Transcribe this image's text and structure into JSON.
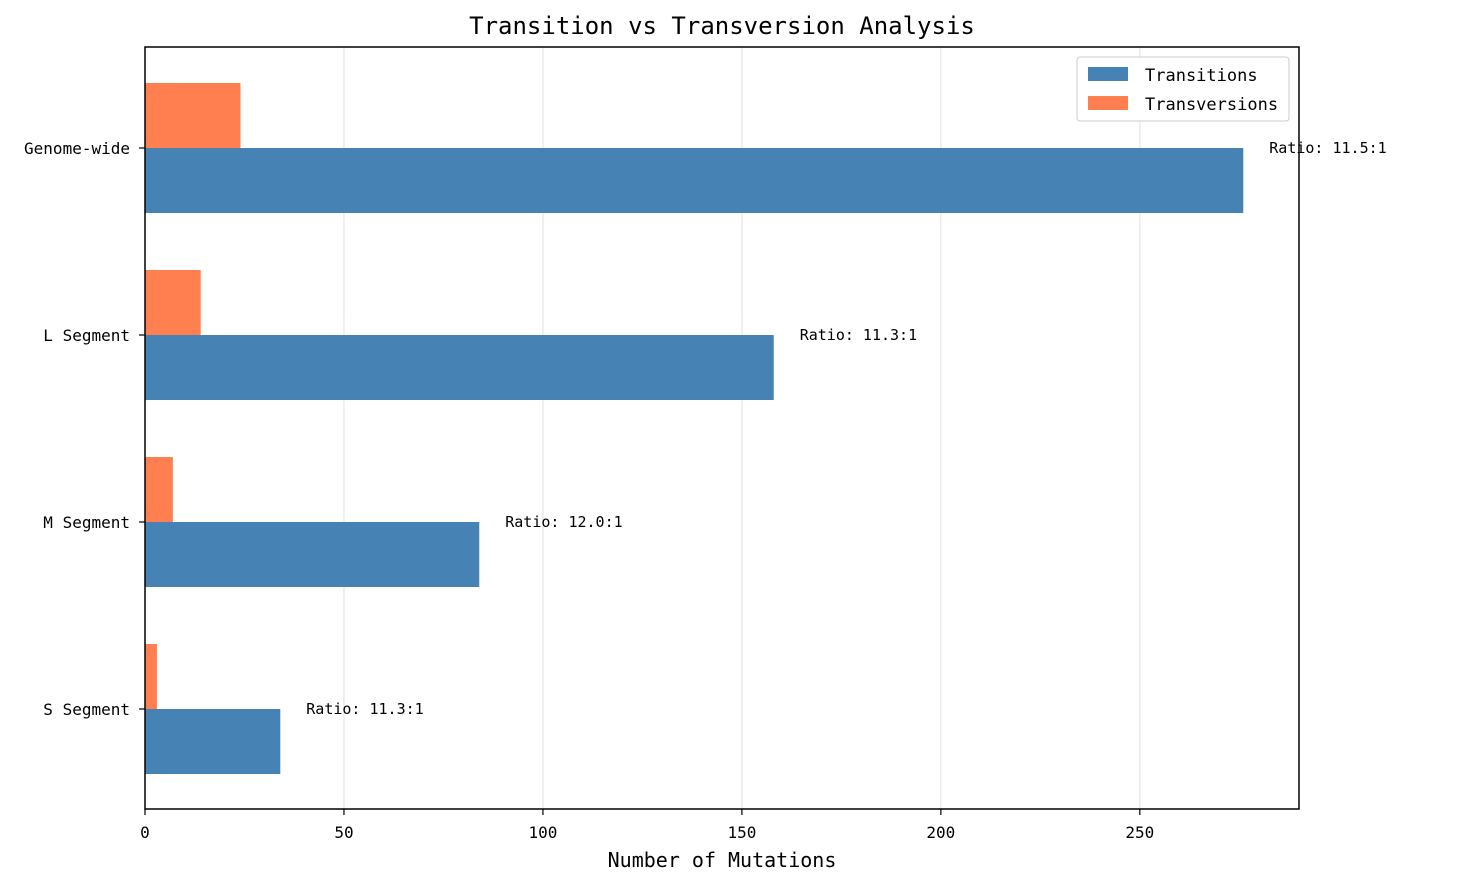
{
  "chart_data": {
    "type": "bar",
    "orientation": "horizontal",
    "title": "Transition vs Transversion Analysis",
    "xlabel": "Number of Mutations",
    "ylabel": "",
    "categories": [
      "Genome-wide",
      "L Segment",
      "M Segment",
      "S Segment"
    ],
    "series": [
      {
        "name": "Transitions",
        "color": "#4682B4",
        "values": [
          276,
          158,
          84,
          34
        ]
      },
      {
        "name": "Transversions",
        "color": "#FF7F50",
        "values": [
          24,
          14,
          7,
          3
        ]
      }
    ],
    "annotations": [
      "Ratio: 11.5:1",
      "Ratio: 11.3:1",
      "Ratio: 12.0:1",
      "Ratio: 11.3:1"
    ],
    "xlim": [
      0,
      290
    ],
    "xticks": [
      0,
      50,
      100,
      150,
      200,
      250
    ],
    "grid": "vertical",
    "legend_position": "top-right"
  }
}
